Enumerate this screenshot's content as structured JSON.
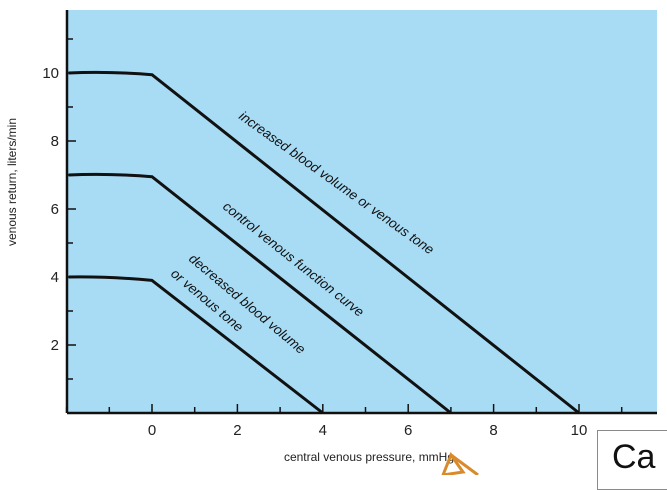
{
  "chart_data": {
    "type": "line",
    "xlabel": "central venous pressure, mmHg",
    "ylabel": "venous return, liters/min",
    "xlim": [
      -2,
      12
    ],
    "ylim": [
      0,
      11.5
    ],
    "x_ticks": [
      0,
      2,
      4,
      6,
      8,
      10
    ],
    "y_ticks": [
      2,
      4,
      6,
      8,
      10
    ],
    "grid": false,
    "background_color": "#a8dcf5",
    "line_color": "#111111",
    "series": [
      {
        "name": "increased blood volume or venous tone",
        "points": [
          [
            -2,
            10
          ],
          [
            -1,
            10.05
          ],
          [
            0,
            9.95
          ],
          [
            10,
            0
          ]
        ]
      },
      {
        "name": "control venous function curve",
        "points": [
          [
            -2,
            7
          ],
          [
            -1,
            7.05
          ],
          [
            0,
            6.95
          ],
          [
            7,
            0
          ]
        ]
      },
      {
        "name": "decreased blood volume or venous tone",
        "points": [
          [
            -2,
            4
          ],
          [
            -1,
            4.02
          ],
          [
            0,
            3.9
          ],
          [
            4,
            0
          ]
        ]
      }
    ],
    "annotations": [
      {
        "text": "increased blood volume or venous tone"
      },
      {
        "text": "control venous function curve"
      },
      {
        "text": "decreased blood volume"
      },
      {
        "text": "or venous tone"
      }
    ]
  },
  "corner_text": "Ca",
  "arrow_color": "#d98a2b"
}
